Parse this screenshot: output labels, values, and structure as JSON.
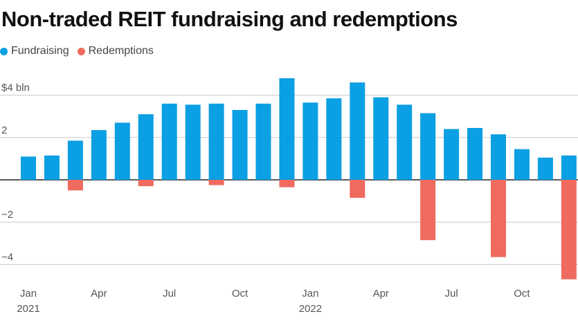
{
  "chart_data": {
    "type": "bar",
    "title": "Non-traded REIT fundraising and redemptions",
    "legend": {
      "placement": "top-left"
    },
    "series": [
      {
        "name": "Fundraising",
        "color": "#0b9fe3",
        "values": [
          1.1,
          1.15,
          1.85,
          2.35,
          2.7,
          3.1,
          3.6,
          3.55,
          3.6,
          3.3,
          3.6,
          4.8,
          3.65,
          3.85,
          4.6,
          3.9,
          3.55,
          3.15,
          2.4,
          2.45,
          2.15,
          1.45,
          1.05,
          1.15
        ]
      },
      {
        "name": "Redemptions",
        "color": "#ef6a5f",
        "values": [
          null,
          null,
          -0.5,
          null,
          null,
          -0.3,
          null,
          null,
          -0.25,
          null,
          null,
          -0.35,
          null,
          null,
          -0.85,
          null,
          null,
          -2.85,
          null,
          null,
          -3.65,
          null,
          null,
          -4.7
        ]
      }
    ],
    "categories": [
      "Jan 2021",
      "Feb 2021",
      "Mar 2021",
      "Apr 2021",
      "May 2021",
      "Jun 2021",
      "Jul 2021",
      "Aug 2021",
      "Sep 2021",
      "Oct 2021",
      "Nov 2021",
      "Dec 2021",
      "Jan 2022",
      "Feb 2022",
      "Mar 2022",
      "Apr 2022",
      "May 2022",
      "Jun 2022",
      "Jul 2022",
      "Aug 2022",
      "Sep 2022",
      "Oct 2022",
      "Nov 2022",
      "Dec 2022"
    ],
    "x_tick_labels": [
      {
        "index": 0,
        "label": "Jan",
        "year": "2021"
      },
      {
        "index": 3,
        "label": "Apr"
      },
      {
        "index": 6,
        "label": "Jul"
      },
      {
        "index": 9,
        "label": "Oct"
      },
      {
        "index": 12,
        "label": "Jan",
        "year": "2022"
      },
      {
        "index": 15,
        "label": "Apr"
      },
      {
        "index": 18,
        "label": "Jul"
      },
      {
        "index": 21,
        "label": "Oct"
      }
    ],
    "y_ticks": [
      {
        "value": 4,
        "label": "$4 bln"
      },
      {
        "value": 2,
        "label": "2"
      },
      {
        "value": 0,
        "label": ""
      },
      {
        "value": -2,
        "label": "−2"
      },
      {
        "value": -4,
        "label": "−4"
      }
    ],
    "ylim": [
      -4.75,
      4.9
    ],
    "grid": true
  }
}
